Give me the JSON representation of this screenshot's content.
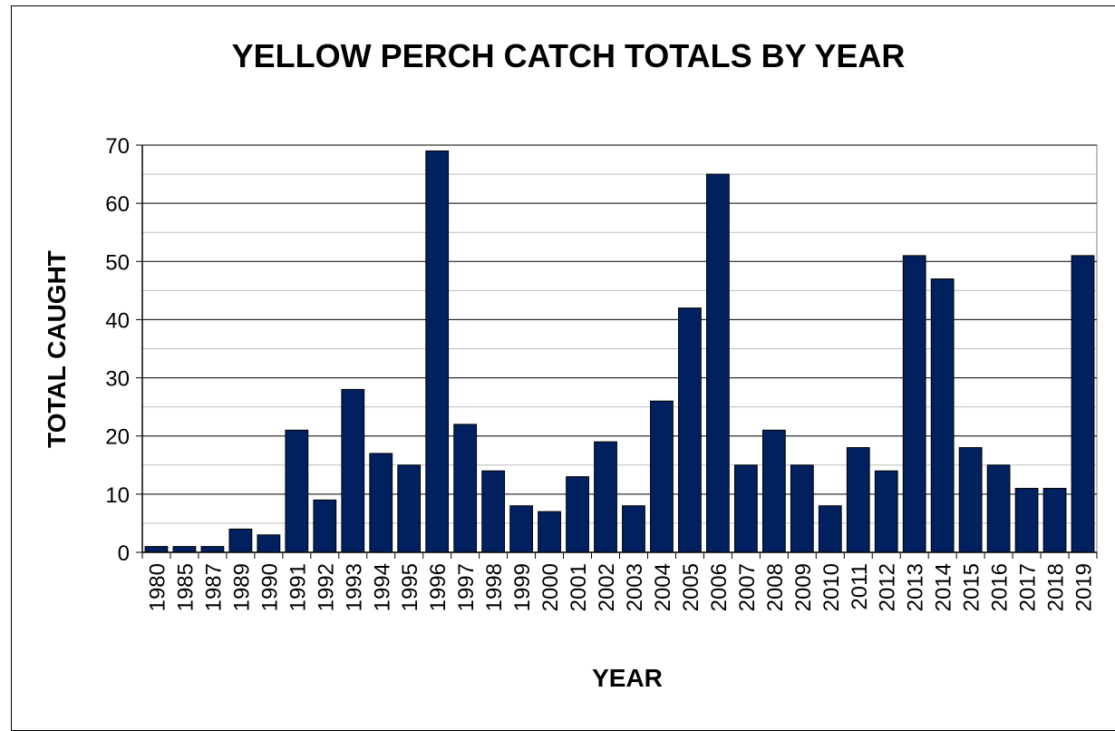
{
  "chart_data": {
    "type": "bar",
    "title": "YELLOW PERCH CATCH TOTALS BY YEAR",
    "xlabel": "YEAR",
    "ylabel": "TOTAL CAUGHT",
    "ylim": [
      0,
      70
    ],
    "yticks": [
      0,
      10,
      20,
      30,
      40,
      50,
      60,
      70
    ],
    "grid": true,
    "legend": "none",
    "bar_color": "#002060",
    "categories": [
      "1980",
      "1985",
      "1987",
      "1989",
      "1990",
      "1991",
      "1992",
      "1993",
      "1994",
      "1995",
      "1996",
      "1997",
      "1998",
      "1999",
      "2000",
      "2001",
      "2002",
      "2003",
      "2004",
      "2005",
      "2006",
      "2007",
      "2008",
      "2009",
      "2010",
      "2011",
      "2012",
      "2013",
      "2014",
      "2015",
      "2016",
      "2017",
      "2018",
      "2019"
    ],
    "values": [
      1,
      1,
      1,
      4,
      3,
      21,
      9,
      28,
      17,
      15,
      69,
      22,
      14,
      8,
      7,
      13,
      19,
      8,
      26,
      42,
      65,
      15,
      21,
      15,
      8,
      18,
      14,
      51,
      47,
      18,
      15,
      11,
      11,
      51
    ]
  }
}
